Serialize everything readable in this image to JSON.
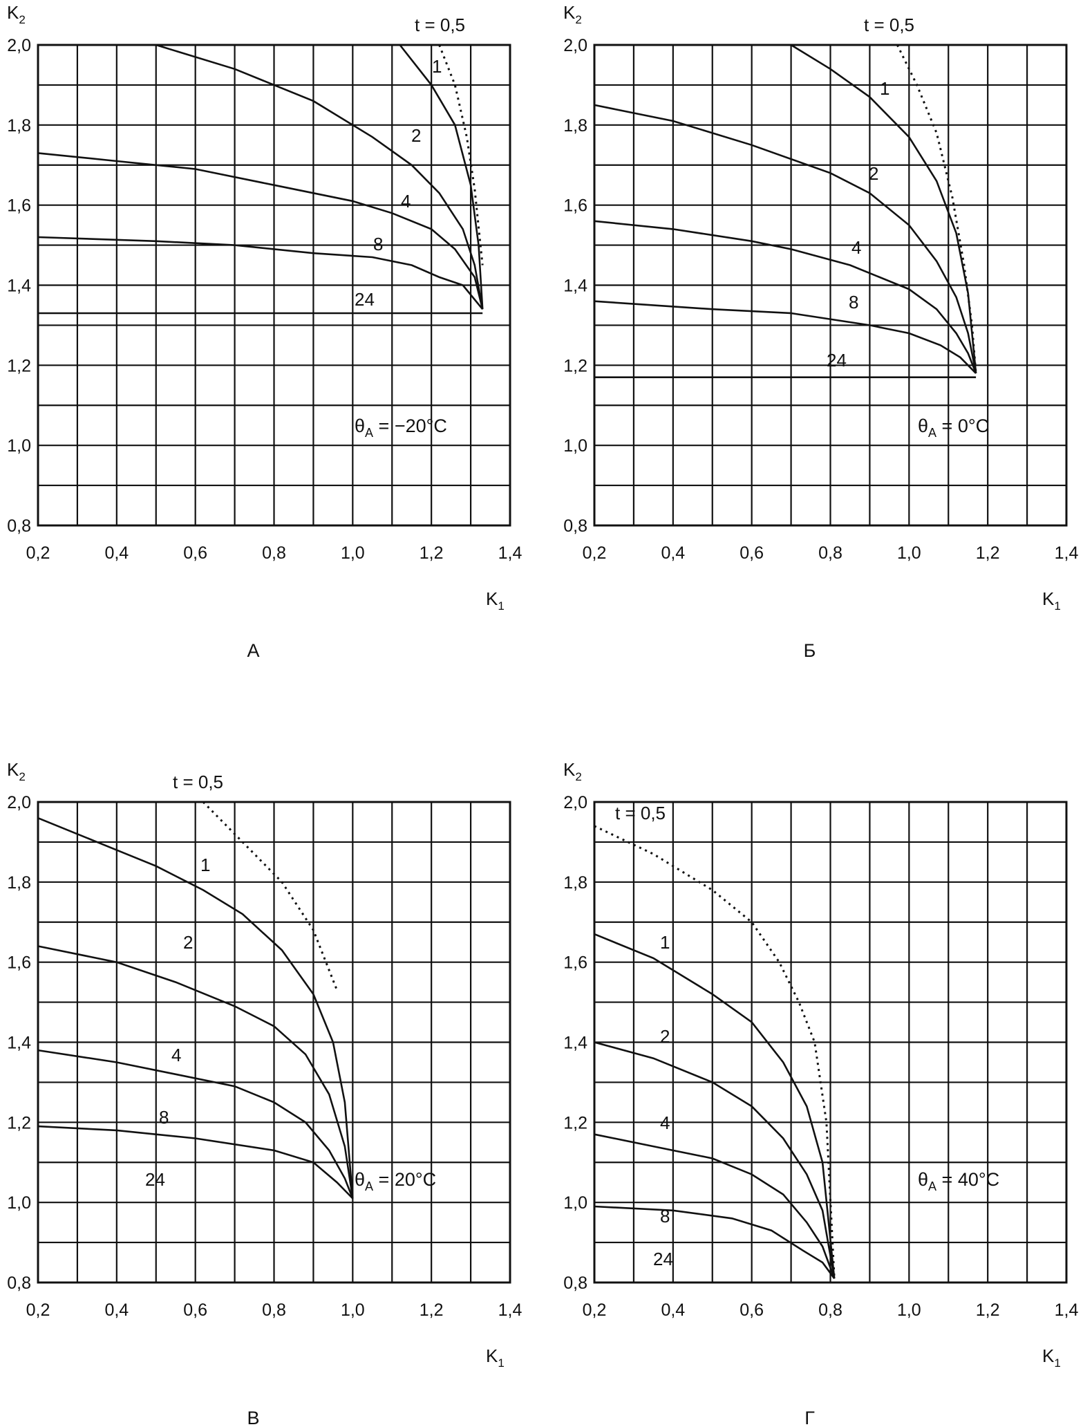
{
  "chart_data": [
    {
      "type": "line",
      "panel_label": "А",
      "xlabel": "K₁",
      "ylabel": "K₂",
      "xlim": [
        0.2,
        1.4
      ],
      "ylim": [
        0.8,
        2.0
      ],
      "x_ticks": [
        "0,2",
        "0,4",
        "0,6",
        "0,8",
        "1,0",
        "1,2",
        "1,4"
      ],
      "y_ticks": [
        "0,8",
        "1,0",
        "1,2",
        "1,4",
        "1,6",
        "1,8",
        "2,0"
      ],
      "grid": true,
      "annotation": "θA = −20°C",
      "series": [
        {
          "name": "t = 0,5",
          "style": "dotted",
          "points": [
            [
              1.22,
              2.0
            ],
            [
              1.26,
              1.9
            ],
            [
              1.29,
              1.77
            ],
            [
              1.31,
              1.64
            ],
            [
              1.33,
              1.45
            ]
          ]
        },
        {
          "name": "1",
          "points": [
            [
              1.12,
              2.0
            ],
            [
              1.2,
              1.9
            ],
            [
              1.26,
              1.8
            ],
            [
              1.3,
              1.65
            ],
            [
              1.32,
              1.5
            ],
            [
              1.33,
              1.34
            ]
          ]
        },
        {
          "name": "2",
          "points": [
            [
              0.5,
              2.0
            ],
            [
              0.7,
              1.94
            ],
            [
              0.9,
              1.86
            ],
            [
              1.05,
              1.77
            ],
            [
              1.15,
              1.7
            ],
            [
              1.22,
              1.63
            ],
            [
              1.28,
              1.54
            ],
            [
              1.31,
              1.45
            ],
            [
              1.33,
              1.34
            ]
          ]
        },
        {
          "name": "4",
          "points": [
            [
              0.2,
              1.73
            ],
            [
              0.4,
              1.71
            ],
            [
              0.6,
              1.69
            ],
            [
              0.8,
              1.65
            ],
            [
              1.0,
              1.61
            ],
            [
              1.1,
              1.58
            ],
            [
              1.2,
              1.54
            ],
            [
              1.26,
              1.49
            ],
            [
              1.31,
              1.42
            ],
            [
              1.33,
              1.34
            ]
          ]
        },
        {
          "name": "8",
          "points": [
            [
              0.2,
              1.52
            ],
            [
              0.5,
              1.51
            ],
            [
              0.7,
              1.5
            ],
            [
              0.9,
              1.48
            ],
            [
              1.05,
              1.47
            ],
            [
              1.15,
              1.45
            ],
            [
              1.22,
              1.42
            ],
            [
              1.28,
              1.4
            ],
            [
              1.33,
              1.34
            ]
          ]
        },
        {
          "name": "24",
          "points": [
            [
              0.2,
              1.33
            ],
            [
              1.33,
              1.33
            ]
          ]
        }
      ]
    },
    {
      "type": "line",
      "panel_label": "Б",
      "xlabel": "K₁",
      "ylabel": "K₂",
      "xlim": [
        0.2,
        1.4
      ],
      "ylim": [
        0.8,
        2.0
      ],
      "x_ticks": [
        "0,2",
        "0,4",
        "0,6",
        "0,8",
        "1,0",
        "1,2",
        "1,4"
      ],
      "y_ticks": [
        "0,8",
        "1,0",
        "1,2",
        "1,4",
        "1,6",
        "1,8",
        "2,0"
      ],
      "grid": true,
      "annotation": "θA = 0°C",
      "series": [
        {
          "name": "t = 0,5",
          "style": "dotted",
          "points": [
            [
              0.97,
              2.0
            ],
            [
              1.02,
              1.9
            ],
            [
              1.07,
              1.78
            ],
            [
              1.11,
              1.62
            ],
            [
              1.14,
              1.45
            ],
            [
              1.16,
              1.3
            ],
            [
              1.17,
              1.18
            ]
          ]
        },
        {
          "name": "1",
          "points": [
            [
              0.7,
              2.0
            ],
            [
              0.8,
              1.94
            ],
            [
              0.9,
              1.87
            ],
            [
              1.0,
              1.77
            ],
            [
              1.07,
              1.66
            ],
            [
              1.12,
              1.53
            ],
            [
              1.15,
              1.38
            ],
            [
              1.17,
              1.18
            ]
          ]
        },
        {
          "name": "2",
          "points": [
            [
              0.2,
              1.85
            ],
            [
              0.4,
              1.81
            ],
            [
              0.6,
              1.75
            ],
            [
              0.8,
              1.68
            ],
            [
              0.9,
              1.63
            ],
            [
              1.0,
              1.55
            ],
            [
              1.07,
              1.46
            ],
            [
              1.12,
              1.37
            ],
            [
              1.15,
              1.28
            ],
            [
              1.17,
              1.18
            ]
          ]
        },
        {
          "name": "4",
          "points": [
            [
              0.2,
              1.56
            ],
            [
              0.4,
              1.54
            ],
            [
              0.6,
              1.51
            ],
            [
              0.7,
              1.49
            ],
            [
              0.85,
              1.45
            ],
            [
              1.0,
              1.39
            ],
            [
              1.07,
              1.34
            ],
            [
              1.12,
              1.28
            ],
            [
              1.15,
              1.23
            ],
            [
              1.17,
              1.18
            ]
          ]
        },
        {
          "name": "8",
          "points": [
            [
              0.2,
              1.36
            ],
            [
              0.5,
              1.34
            ],
            [
              0.7,
              1.33
            ],
            [
              0.9,
              1.3
            ],
            [
              1.0,
              1.28
            ],
            [
              1.08,
              1.25
            ],
            [
              1.13,
              1.22
            ],
            [
              1.17,
              1.18
            ]
          ]
        },
        {
          "name": "24",
          "points": [
            [
              0.2,
              1.17
            ],
            [
              1.17,
              1.17
            ]
          ]
        }
      ]
    },
    {
      "type": "line",
      "panel_label": "В",
      "xlabel": "K₁",
      "ylabel": "K₂",
      "xlim": [
        0.2,
        1.4
      ],
      "ylim": [
        0.8,
        2.0
      ],
      "x_ticks": [
        "0,2",
        "0,4",
        "0,6",
        "0,8",
        "1,0",
        "1,2",
        "1,4"
      ],
      "y_ticks": [
        "0,8",
        "1,0",
        "1,2",
        "1,4",
        "1,6",
        "1,8",
        "2,0"
      ],
      "grid": true,
      "annotation": "θA = 20°C",
      "series": [
        {
          "name": "t = 0,5",
          "style": "dotted",
          "points": [
            [
              0.62,
              2.0
            ],
            [
              0.72,
              1.9
            ],
            [
              0.82,
              1.8
            ],
            [
              0.9,
              1.68
            ],
            [
              0.94,
              1.58
            ],
            [
              0.96,
              1.53
            ]
          ]
        },
        {
          "name": "1",
          "points": [
            [
              0.2,
              1.96
            ],
            [
              0.35,
              1.9
            ],
            [
              0.5,
              1.84
            ],
            [
              0.62,
              1.78
            ],
            [
              0.72,
              1.72
            ],
            [
              0.82,
              1.63
            ],
            [
              0.9,
              1.52
            ],
            [
              0.95,
              1.4
            ],
            [
              0.98,
              1.25
            ],
            [
              1.0,
              1.01
            ]
          ]
        },
        {
          "name": "2",
          "points": [
            [
              0.2,
              1.64
            ],
            [
              0.4,
              1.6
            ],
            [
              0.55,
              1.55
            ],
            [
              0.7,
              1.49
            ],
            [
              0.8,
              1.44
            ],
            [
              0.88,
              1.37
            ],
            [
              0.94,
              1.27
            ],
            [
              0.98,
              1.14
            ],
            [
              1.0,
              1.01
            ]
          ]
        },
        {
          "name": "4",
          "points": [
            [
              0.2,
              1.38
            ],
            [
              0.4,
              1.35
            ],
            [
              0.55,
              1.32
            ],
            [
              0.7,
              1.29
            ],
            [
              0.8,
              1.25
            ],
            [
              0.88,
              1.2
            ],
            [
              0.94,
              1.13
            ],
            [
              0.98,
              1.06
            ],
            [
              1.0,
              1.01
            ]
          ]
        },
        {
          "name": "8",
          "points": [
            [
              0.2,
              1.19
            ],
            [
              0.4,
              1.18
            ],
            [
              0.6,
              1.16
            ],
            [
              0.8,
              1.13
            ],
            [
              0.9,
              1.1
            ],
            [
              0.96,
              1.05
            ],
            [
              1.0,
              1.01
            ]
          ]
        },
        {
          "name": "24",
          "points": [
            [
              1.0,
              1.0
            ]
          ]
        }
      ]
    },
    {
      "type": "line",
      "panel_label": "Г",
      "xlabel": "K₁",
      "ylabel": "K₂",
      "xlim": [
        0.2,
        1.4
      ],
      "ylim": [
        0.8,
        2.0
      ],
      "x_ticks": [
        "0,2",
        "0,4",
        "0,6",
        "0,8",
        "1,0",
        "1,2",
        "1,4"
      ],
      "y_ticks": [
        "0,8",
        "1,0",
        "1,2",
        "1,4",
        "1,6",
        "1,8",
        "2,0"
      ],
      "grid": true,
      "annotation": "θA = 40°C",
      "series": [
        {
          "name": "t = 0,5",
          "style": "dotted",
          "points": [
            [
              0.2,
              1.94
            ],
            [
              0.35,
              1.87
            ],
            [
              0.5,
              1.78
            ],
            [
              0.6,
              1.7
            ],
            [
              0.67,
              1.6
            ],
            [
              0.72,
              1.5
            ],
            [
              0.76,
              1.4
            ],
            [
              0.79,
              1.2
            ],
            [
              0.81,
              0.81
            ]
          ]
        },
        {
          "name": "1",
          "points": [
            [
              0.2,
              1.67
            ],
            [
              0.35,
              1.61
            ],
            [
              0.5,
              1.52
            ],
            [
              0.6,
              1.45
            ],
            [
              0.68,
              1.35
            ],
            [
              0.74,
              1.24
            ],
            [
              0.78,
              1.1
            ],
            [
              0.81,
              0.81
            ]
          ]
        },
        {
          "name": "2",
          "points": [
            [
              0.2,
              1.4
            ],
            [
              0.35,
              1.36
            ],
            [
              0.5,
              1.3
            ],
            [
              0.6,
              1.24
            ],
            [
              0.68,
              1.16
            ],
            [
              0.74,
              1.07
            ],
            [
              0.78,
              0.98
            ],
            [
              0.81,
              0.81
            ]
          ]
        },
        {
          "name": "4",
          "points": [
            [
              0.2,
              1.17
            ],
            [
              0.35,
              1.14
            ],
            [
              0.5,
              1.11
            ],
            [
              0.6,
              1.07
            ],
            [
              0.68,
              1.02
            ],
            [
              0.74,
              0.95
            ],
            [
              0.78,
              0.89
            ],
            [
              0.81,
              0.81
            ]
          ]
        },
        {
          "name": "8",
          "points": [
            [
              0.2,
              0.99
            ],
            [
              0.4,
              0.98
            ],
            [
              0.55,
              0.96
            ],
            [
              0.65,
              0.93
            ],
            [
              0.73,
              0.88
            ],
            [
              0.78,
              0.85
            ],
            [
              0.81,
              0.81
            ]
          ]
        },
        {
          "name": "24",
          "points": [
            [
              0.2,
              0.8
            ],
            [
              0.81,
              0.8
            ]
          ]
        }
      ]
    }
  ]
}
